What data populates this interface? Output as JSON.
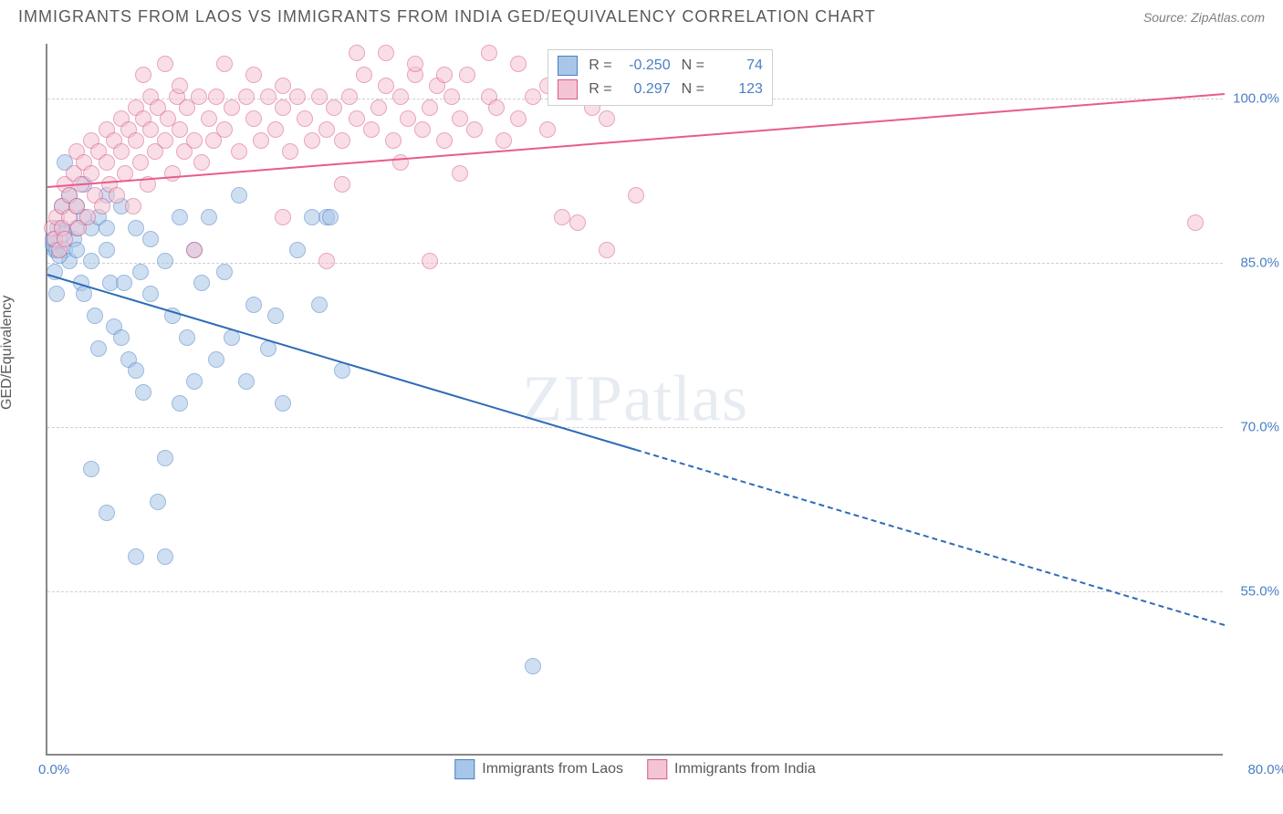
{
  "header": {
    "title": "IMMIGRANTS FROM LAOS VS IMMIGRANTS FROM INDIA GED/EQUIVALENCY CORRELATION CHART",
    "source_label": "Source: ",
    "source_value": "ZipAtlas.com"
  },
  "chart": {
    "type": "scatter",
    "ylabel": "GED/Equivalency",
    "background_color": "#ffffff",
    "grid_color": "#d0d0d0",
    "axis_color": "#888888",
    "xlim": [
      0,
      80
    ],
    "ylim": [
      40,
      105
    ],
    "y_gridlines": [
      55,
      70,
      85,
      100
    ],
    "y_tick_labels": [
      "55.0%",
      "70.0%",
      "85.0%",
      "100.0%"
    ],
    "x_tick_labels": {
      "left": "0.0%",
      "right": "80.0%"
    },
    "point_radius": 9,
    "watermark": "ZIPatlas",
    "series": [
      {
        "name": "Immigrants from Laos",
        "fill_color": "#a8c6e8",
        "border_color": "#4a7fc4",
        "R": "-0.250",
        "N": "74",
        "trend": {
          "x1": 0,
          "y1": 84,
          "x2_solid": 40,
          "x2": 80,
          "y2": 52,
          "color": "#2e6bb8"
        },
        "points": [
          [
            0.5,
            86
          ],
          [
            0.5,
            84
          ],
          [
            0.7,
            88
          ],
          [
            0.6,
            82
          ],
          [
            1,
            90
          ],
          [
            1,
            88
          ],
          [
            1.2,
            94
          ],
          [
            1.2,
            86
          ],
          [
            1.5,
            91
          ],
          [
            1.5,
            85
          ],
          [
            1.8,
            87
          ],
          [
            2,
            90
          ],
          [
            2,
            88
          ],
          [
            2,
            86
          ],
          [
            2.3,
            83
          ],
          [
            2.5,
            92
          ],
          [
            2.5,
            89
          ],
          [
            2.5,
            82
          ],
          [
            3,
            88
          ],
          [
            3,
            85
          ],
          [
            3.2,
            80
          ],
          [
            3.5,
            89
          ],
          [
            3.5,
            77
          ],
          [
            4,
            91
          ],
          [
            4,
            88
          ],
          [
            4,
            86
          ],
          [
            4.3,
            83
          ],
          [
            4.5,
            79
          ],
          [
            5,
            90
          ],
          [
            5,
            78
          ],
          [
            5.2,
            83
          ],
          [
            5.5,
            76
          ],
          [
            6,
            88
          ],
          [
            6,
            75
          ],
          [
            6.3,
            84
          ],
          [
            6.5,
            73
          ],
          [
            7,
            87
          ],
          [
            7,
            82
          ],
          [
            7.5,
            63
          ],
          [
            8,
            85
          ],
          [
            8,
            67
          ],
          [
            8.5,
            80
          ],
          [
            9,
            89
          ],
          [
            9,
            72
          ],
          [
            9.5,
            78
          ],
          [
            10,
            86
          ],
          [
            10,
            74
          ],
          [
            10.5,
            83
          ],
          [
            11,
            89
          ],
          [
            11.5,
            76
          ],
          [
            12,
            84
          ],
          [
            12.5,
            78
          ],
          [
            13,
            91
          ],
          [
            13.5,
            74
          ],
          [
            14,
            81
          ],
          [
            15,
            77
          ],
          [
            15.5,
            80
          ],
          [
            16,
            72
          ],
          [
            17,
            86
          ],
          [
            18,
            89
          ],
          [
            18.5,
            81
          ],
          [
            19,
            89
          ],
          [
            19.2,
            89
          ],
          [
            20,
            75
          ],
          [
            3,
            66
          ],
          [
            4,
            62
          ],
          [
            6,
            58
          ],
          [
            8,
            58
          ],
          [
            33,
            48
          ],
          [
            0.4,
            86.5
          ],
          [
            0.4,
            87
          ],
          [
            0.6,
            86
          ],
          [
            0.8,
            85.5
          ],
          [
            1.1,
            87.5
          ]
        ]
      },
      {
        "name": "Immigrants from India",
        "fill_color": "#f5c4d4",
        "border_color": "#d85a85",
        "R": "0.297",
        "N": "123",
        "trend": {
          "x1": 0,
          "y1": 92,
          "x2_solid": 80,
          "x2": 80,
          "y2": 100.5,
          "color": "#e85c8a"
        },
        "points": [
          [
            0.3,
            88
          ],
          [
            0.5,
            87
          ],
          [
            0.6,
            89
          ],
          [
            0.8,
            86
          ],
          [
            1,
            90
          ],
          [
            1,
            88
          ],
          [
            1.2,
            92
          ],
          [
            1.2,
            87
          ],
          [
            1.5,
            91
          ],
          [
            1.5,
            89
          ],
          [
            1.8,
            93
          ],
          [
            2,
            95
          ],
          [
            2,
            90
          ],
          [
            2.1,
            88
          ],
          [
            2.3,
            92
          ],
          [
            2.5,
            94
          ],
          [
            2.7,
            89
          ],
          [
            3,
            96
          ],
          [
            3,
            93
          ],
          [
            3.2,
            91
          ],
          [
            3.5,
            95
          ],
          [
            3.7,
            90
          ],
          [
            4,
            97
          ],
          [
            4,
            94
          ],
          [
            4.2,
            92
          ],
          [
            4.5,
            96
          ],
          [
            4.7,
            91
          ],
          [
            5,
            98
          ],
          [
            5,
            95
          ],
          [
            5.3,
            93
          ],
          [
            5.5,
            97
          ],
          [
            5.8,
            90
          ],
          [
            6,
            99
          ],
          [
            6,
            96
          ],
          [
            6.3,
            94
          ],
          [
            6.5,
            98
          ],
          [
            6.8,
            92
          ],
          [
            7,
            100
          ],
          [
            7,
            97
          ],
          [
            7.3,
            95
          ],
          [
            7.5,
            99
          ],
          [
            8,
            96
          ],
          [
            8.2,
            98
          ],
          [
            8.5,
            93
          ],
          [
            8.8,
            100
          ],
          [
            9,
            97
          ],
          [
            9.3,
            95
          ],
          [
            9.5,
            99
          ],
          [
            10,
            96
          ],
          [
            10.3,
            100
          ],
          [
            10.5,
            94
          ],
          [
            11,
            98
          ],
          [
            11.3,
            96
          ],
          [
            11.5,
            100
          ],
          [
            12,
            97
          ],
          [
            12.5,
            99
          ],
          [
            13,
            95
          ],
          [
            13.5,
            100
          ],
          [
            14,
            98
          ],
          [
            14.5,
            96
          ],
          [
            15,
            100
          ],
          [
            15.5,
            97
          ],
          [
            16,
            99
          ],
          [
            16.5,
            95
          ],
          [
            17,
            100
          ],
          [
            17.5,
            98
          ],
          [
            18,
            96
          ],
          [
            18.5,
            100
          ],
          [
            19,
            97
          ],
          [
            19.5,
            99
          ],
          [
            20,
            96
          ],
          [
            20.5,
            100
          ],
          [
            21,
            98
          ],
          [
            21.5,
            102
          ],
          [
            22,
            97
          ],
          [
            22.5,
            99
          ],
          [
            23,
            101
          ],
          [
            23.5,
            96
          ],
          [
            24,
            100
          ],
          [
            24.5,
            98
          ],
          [
            25,
            102
          ],
          [
            25.5,
            97
          ],
          [
            26,
            99
          ],
          [
            26.5,
            101
          ],
          [
            27,
            96
          ],
          [
            27.5,
            100
          ],
          [
            28,
            98
          ],
          [
            28.5,
            102
          ],
          [
            29,
            97
          ],
          [
            30,
            100
          ],
          [
            30.5,
            99
          ],
          [
            31,
            96
          ],
          [
            32,
            98
          ],
          [
            33,
            100
          ],
          [
            34,
            97
          ],
          [
            35,
            89
          ],
          [
            36,
            88.5
          ],
          [
            37,
            99
          ],
          [
            38,
            98
          ],
          [
            38,
            86
          ],
          [
            40,
            91
          ],
          [
            26,
            85
          ],
          [
            19,
            85
          ],
          [
            16,
            89
          ],
          [
            10,
            86
          ],
          [
            20,
            92
          ],
          [
            24,
            94
          ],
          [
            28,
            93
          ],
          [
            21,
            104
          ],
          [
            23,
            104
          ],
          [
            25,
            103
          ],
          [
            27,
            102
          ],
          [
            30,
            104
          ],
          [
            32,
            103
          ],
          [
            34,
            101
          ],
          [
            36,
            101
          ],
          [
            6.5,
            102
          ],
          [
            8,
            103
          ],
          [
            9,
            101
          ],
          [
            12,
            103
          ],
          [
            14,
            102
          ],
          [
            16,
            101
          ],
          [
            78,
            88.5
          ]
        ]
      }
    ]
  },
  "legend_top": {
    "R_label": "R =",
    "N_label": "N ="
  },
  "legend_bottom": {
    "items": [
      {
        "label": "Immigrants from Laos",
        "fill": "#a8c6e8",
        "border": "#4a7fc4"
      },
      {
        "label": "Immigrants from India",
        "fill": "#f5c4d4",
        "border": "#d85a85"
      }
    ]
  }
}
